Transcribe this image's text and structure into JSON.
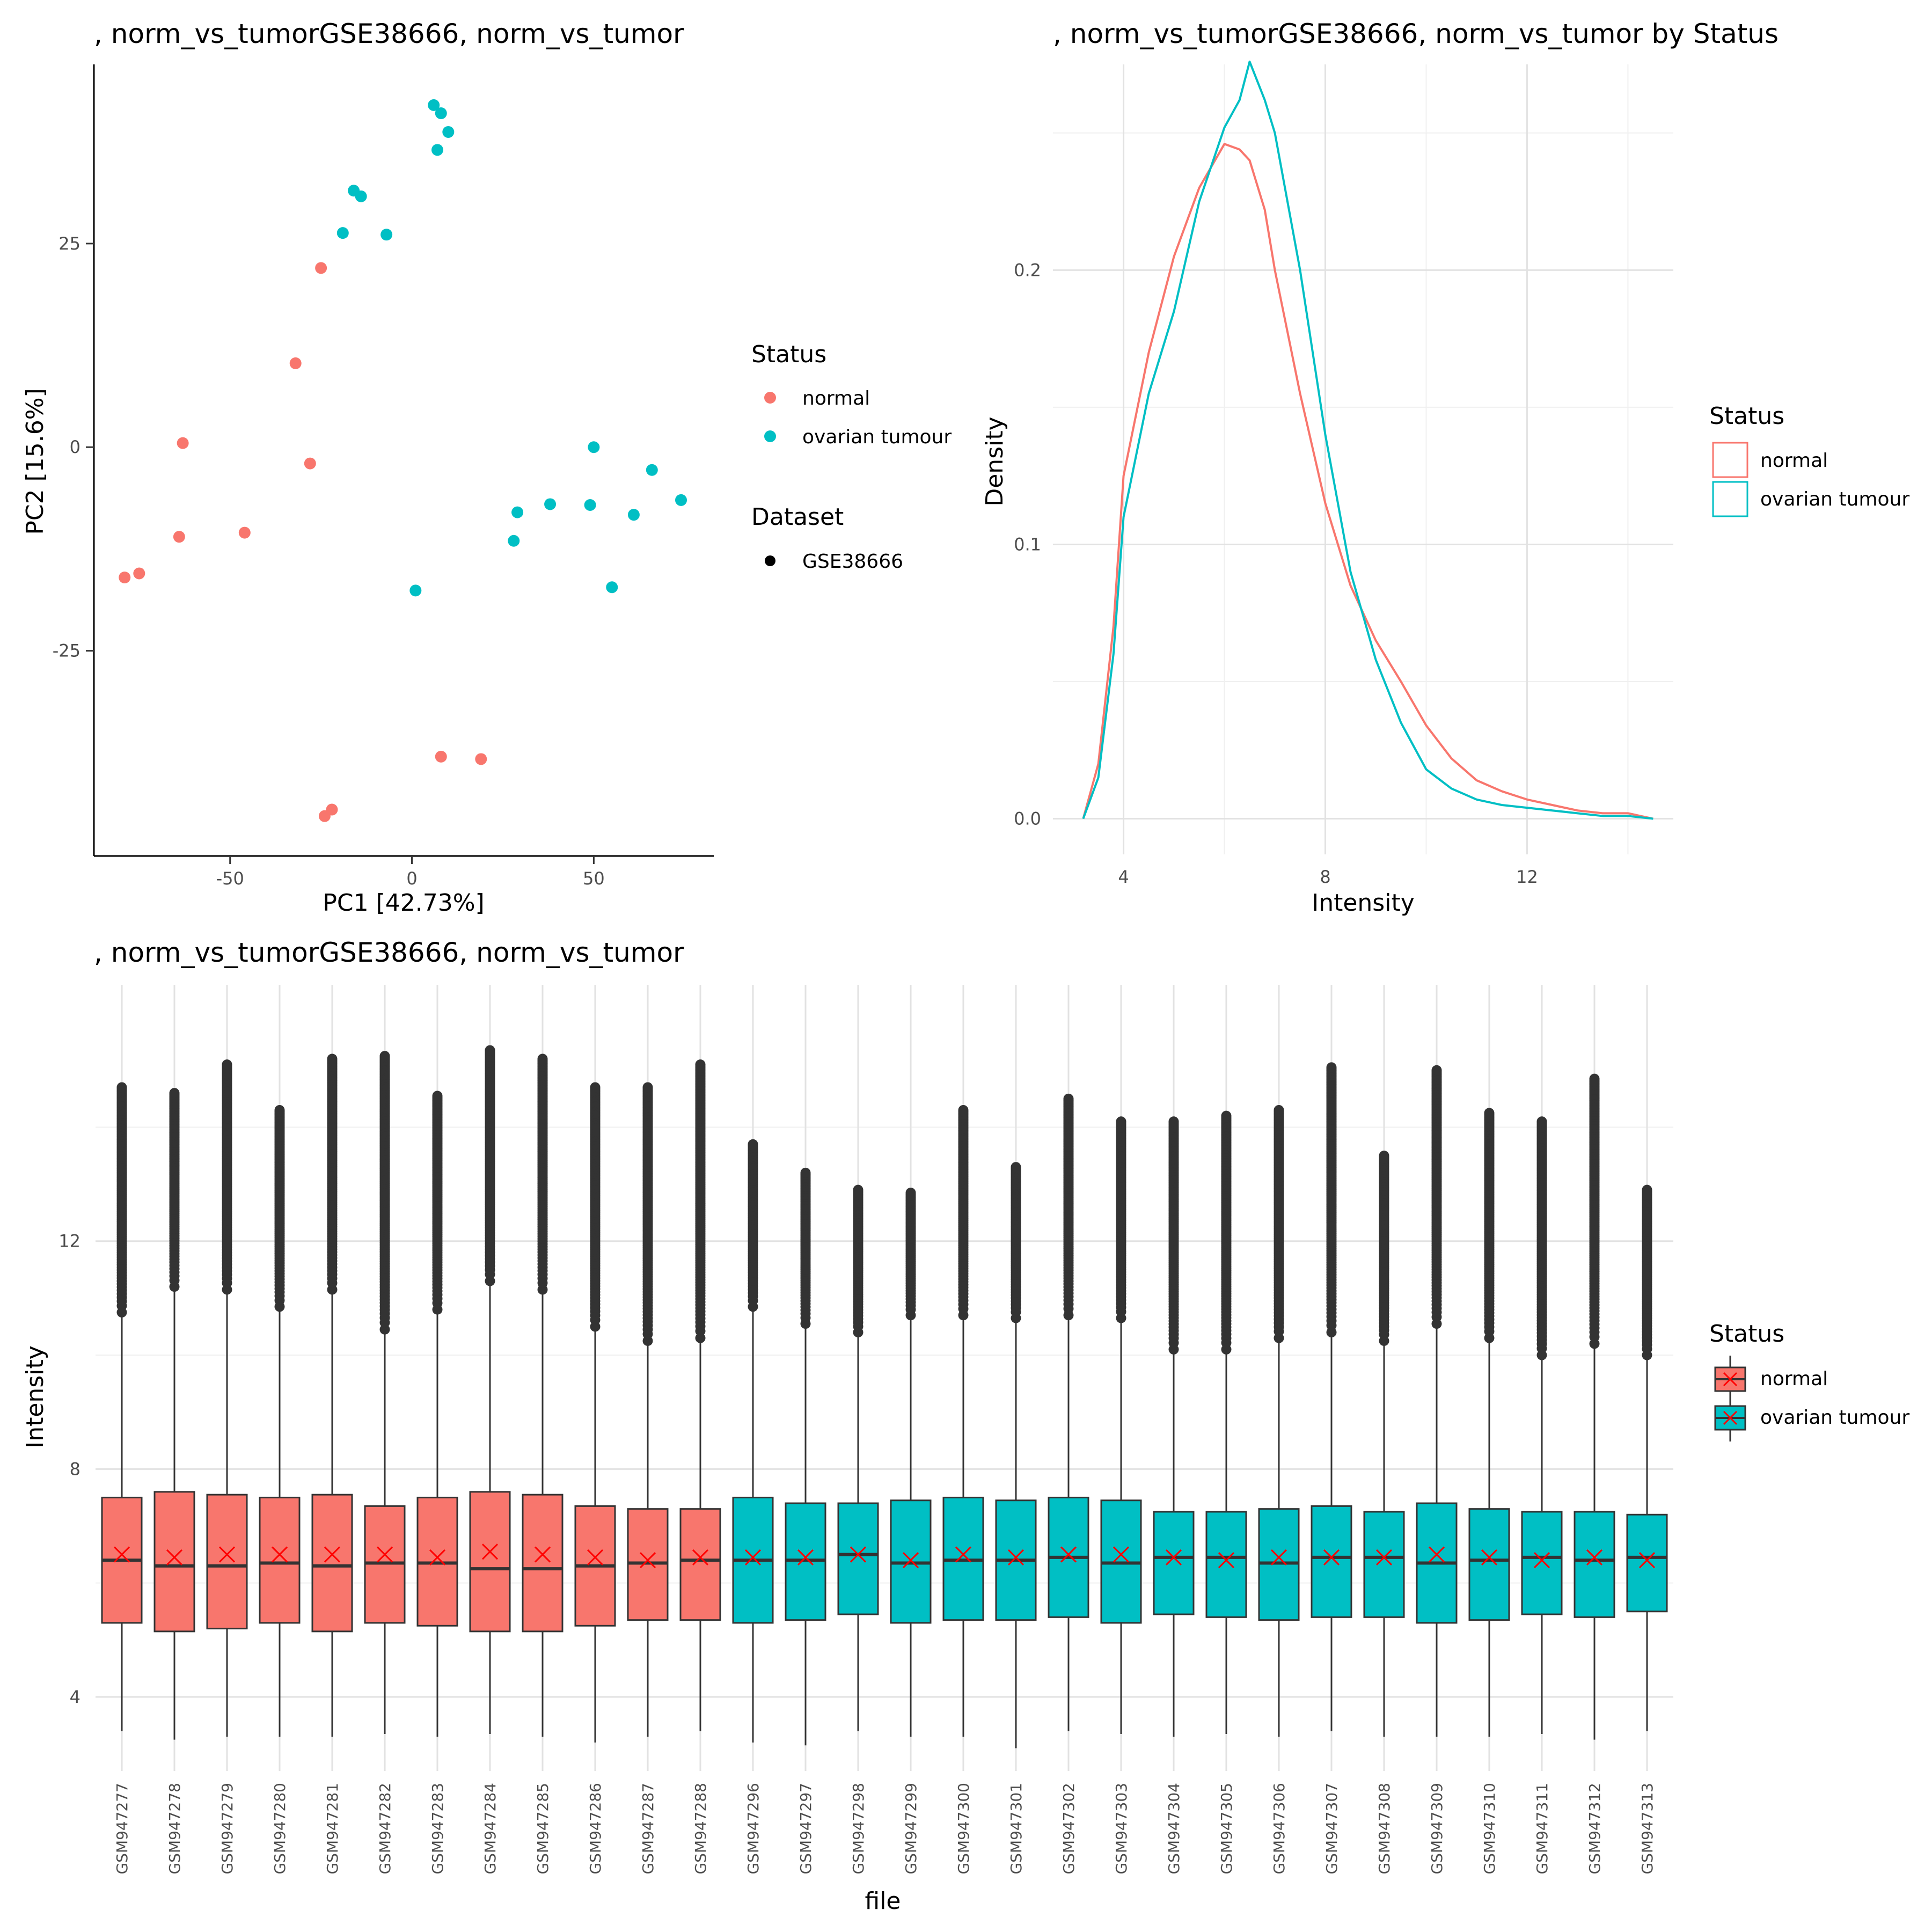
{
  "status_colors": {
    "normal": "#F8766D",
    "ovarian tumour": "#00BFC4"
  },
  "mean_marker_color": "#FF0000",
  "chart_data": [
    {
      "type": "scatter",
      "title": ", norm_vs_tumorGSE38666, norm_vs_tumor",
      "xlabel": "PC1 [42.73%]",
      "ylabel": "PC2 [15.6%]",
      "xticks": [
        -50,
        0,
        50
      ],
      "yticks": [
        -25,
        0,
        25
      ],
      "xlim": [
        -87,
        83
      ],
      "ylim": [
        -50,
        47
      ],
      "grid": false,
      "legend_position": "right",
      "legend": {
        "status_title": "Status",
        "status_items": [
          "normal",
          "ovarian tumour"
        ],
        "dataset_title": "Dataset",
        "dataset_items": [
          "GSE38666"
        ]
      },
      "series": [
        {
          "name": "normal",
          "points": [
            [
              -25,
              22
            ],
            [
              -32,
              10.3
            ],
            [
              -63,
              0.5
            ],
            [
              -28,
              -2
            ],
            [
              -46,
              -10.5
            ],
            [
              -64,
              -11
            ],
            [
              -75,
              -15.5
            ],
            [
              -79,
              -16
            ],
            [
              8,
              -38
            ],
            [
              19,
              -38.3
            ],
            [
              -22,
              -44.5
            ],
            [
              -24,
              -45.3
            ]
          ]
        },
        {
          "name": "ovarian tumour",
          "points": [
            [
              6,
              42
            ],
            [
              8,
              41
            ],
            [
              10,
              38.7
            ],
            [
              7,
              36.5
            ],
            [
              -16,
              31.5
            ],
            [
              -14,
              30.8
            ],
            [
              -19,
              26.3
            ],
            [
              -7,
              26.1
            ],
            [
              50,
              0
            ],
            [
              66,
              -2.8
            ],
            [
              74,
              -6.5
            ],
            [
              38,
              -7
            ],
            [
              49,
              -7.1
            ],
            [
              29,
              -8
            ],
            [
              61,
              -8.3
            ],
            [
              28,
              -11.5
            ],
            [
              1,
              -17.6
            ],
            [
              55,
              -17.2
            ]
          ]
        }
      ]
    },
    {
      "type": "line",
      "title": ", norm_vs_tumorGSE38666, norm_vs_tumor  by Status",
      "xlabel": "Intensity",
      "ylabel": "Density",
      "xticks": [
        4,
        8,
        12
      ],
      "yticks": [
        0.0,
        0.1,
        0.2
      ],
      "ytick_labels": [
        "0.0",
        "0.1",
        "0.2"
      ],
      "xlim": [
        2.6,
        14.9
      ],
      "ylim": [
        -0.013,
        0.275
      ],
      "grid": true,
      "legend_position": "right",
      "legend": {
        "title": "Status",
        "items": [
          "normal",
          "ovarian tumour"
        ]
      },
      "series": [
        {
          "name": "normal",
          "x": [
            3.2,
            3.5,
            3.8,
            4.0,
            4.5,
            5.0,
            5.5,
            6.0,
            6.3,
            6.5,
            6.8,
            7.0,
            7.5,
            8.0,
            8.5,
            9.0,
            9.5,
            10.0,
            10.5,
            11.0,
            11.5,
            12.0,
            12.5,
            13.0,
            13.5,
            14.0,
            14.5
          ],
          "y": [
            0.0,
            0.02,
            0.07,
            0.125,
            0.17,
            0.205,
            0.23,
            0.246,
            0.244,
            0.24,
            0.222,
            0.2,
            0.155,
            0.115,
            0.085,
            0.065,
            0.05,
            0.034,
            0.022,
            0.014,
            0.01,
            0.007,
            0.005,
            0.003,
            0.002,
            0.002,
            0.0
          ]
        },
        {
          "name": "ovarian tumour",
          "x": [
            3.2,
            3.5,
            3.8,
            4.0,
            4.5,
            5.0,
            5.5,
            6.0,
            6.3,
            6.5,
            6.8,
            7.0,
            7.5,
            8.0,
            8.5,
            9.0,
            9.5,
            10.0,
            10.5,
            11.0,
            11.5,
            12.0,
            12.5,
            13.0,
            13.5,
            14.0,
            14.5
          ],
          "y": [
            0.0,
            0.015,
            0.06,
            0.11,
            0.155,
            0.185,
            0.225,
            0.252,
            0.262,
            0.276,
            0.262,
            0.25,
            0.2,
            0.14,
            0.09,
            0.058,
            0.035,
            0.018,
            0.011,
            0.007,
            0.005,
            0.004,
            0.003,
            0.002,
            0.001,
            0.001,
            0.0
          ]
        }
      ]
    },
    {
      "type": "box",
      "title": ", norm_vs_tumorGSE38666, norm_vs_tumor",
      "xlabel": "file",
      "ylabel": "Intensity",
      "yticks": [
        4,
        8,
        12
      ],
      "ylim": [
        2.7,
        16.5
      ],
      "grid": true,
      "legend_position": "right",
      "legend": {
        "title": "Status",
        "items": [
          "normal",
          "ovarian tumour"
        ]
      },
      "categories": [
        "GSM947277",
        "GSM947278",
        "GSM947279",
        "GSM947280",
        "GSM947281",
        "GSM947282",
        "GSM947283",
        "GSM947284",
        "GSM947285",
        "GSM947286",
        "GSM947287",
        "GSM947288",
        "GSM947296",
        "GSM947297",
        "GSM947298",
        "GSM947299",
        "GSM947300",
        "GSM947301",
        "GSM947302",
        "GSM947303",
        "GSM947304",
        "GSM947305",
        "GSM947306",
        "GSM947307",
        "GSM947308",
        "GSM947309",
        "GSM947310",
        "GSM947311",
        "GSM947312",
        "GSM947313"
      ],
      "status": [
        "normal",
        "normal",
        "normal",
        "normal",
        "normal",
        "normal",
        "normal",
        "normal",
        "normal",
        "normal",
        "normal",
        "normal",
        "ovarian tumour",
        "ovarian tumour",
        "ovarian tumour",
        "ovarian tumour",
        "ovarian tumour",
        "ovarian tumour",
        "ovarian tumour",
        "ovarian tumour",
        "ovarian tumour",
        "ovarian tumour",
        "ovarian tumour",
        "ovarian tumour",
        "ovarian tumour",
        "ovarian tumour",
        "ovarian tumour",
        "ovarian tumour",
        "ovarian tumour",
        "ovarian tumour"
      ],
      "q1": [
        5.3,
        5.15,
        5.2,
        5.3,
        5.15,
        5.3,
        5.25,
        5.15,
        5.15,
        5.25,
        5.35,
        5.35,
        5.3,
        5.35,
        5.45,
        5.3,
        5.35,
        5.35,
        5.4,
        5.3,
        5.45,
        5.4,
        5.35,
        5.4,
        5.4,
        5.3,
        5.35,
        5.45,
        5.4,
        5.5
      ],
      "median": [
        6.4,
        6.3,
        6.3,
        6.35,
        6.3,
        6.35,
        6.35,
        6.25,
        6.25,
        6.3,
        6.35,
        6.4,
        6.4,
        6.4,
        6.5,
        6.35,
        6.4,
        6.4,
        6.45,
        6.35,
        6.45,
        6.45,
        6.35,
        6.45,
        6.45,
        6.35,
        6.4,
        6.45,
        6.4,
        6.45
      ],
      "q3": [
        7.5,
        7.6,
        7.55,
        7.5,
        7.55,
        7.35,
        7.5,
        7.6,
        7.55,
        7.35,
        7.3,
        7.3,
        7.5,
        7.4,
        7.4,
        7.45,
        7.5,
        7.45,
        7.5,
        7.45,
        7.25,
        7.25,
        7.3,
        7.35,
        7.25,
        7.4,
        7.3,
        7.25,
        7.25,
        7.2
      ],
      "lower": [
        3.4,
        3.25,
        3.3,
        3.3,
        3.3,
        3.35,
        3.3,
        3.35,
        3.3,
        3.2,
        3.3,
        3.4,
        3.2,
        3.15,
        3.4,
        3.3,
        3.3,
        3.1,
        3.4,
        3.35,
        3.3,
        3.35,
        3.3,
        3.4,
        3.3,
        3.3,
        3.3,
        3.35,
        3.25,
        3.4
      ],
      "upper": [
        10.75,
        11.2,
        11.15,
        10.85,
        11.15,
        10.45,
        10.8,
        11.3,
        11.15,
        10.5,
        10.25,
        10.3,
        10.85,
        10.55,
        10.4,
        10.7,
        10.7,
        10.65,
        10.7,
        10.65,
        10.1,
        10.1,
        10.3,
        10.4,
        10.25,
        10.55,
        10.3,
        10.0,
        10.2,
        10.0
      ],
      "mean": [
        6.5,
        6.45,
        6.5,
        6.5,
        6.5,
        6.5,
        6.45,
        6.55,
        6.5,
        6.45,
        6.4,
        6.45,
        6.45,
        6.45,
        6.5,
        6.4,
        6.5,
        6.45,
        6.5,
        6.5,
        6.45,
        6.4,
        6.45,
        6.45,
        6.45,
        6.5,
        6.45,
        6.4,
        6.45,
        6.4
      ],
      "max": [
        14.7,
        14.6,
        15.1,
        14.3,
        15.2,
        15.25,
        14.55,
        15.35,
        15.2,
        14.7,
        14.7,
        15.1,
        13.7,
        13.2,
        12.9,
        12.85,
        14.3,
        13.3,
        14.5,
        14.1,
        14.1,
        14.2,
        14.3,
        15.05,
        13.5,
        15.0,
        14.25,
        14.1,
        14.85,
        12.9
      ]
    }
  ]
}
